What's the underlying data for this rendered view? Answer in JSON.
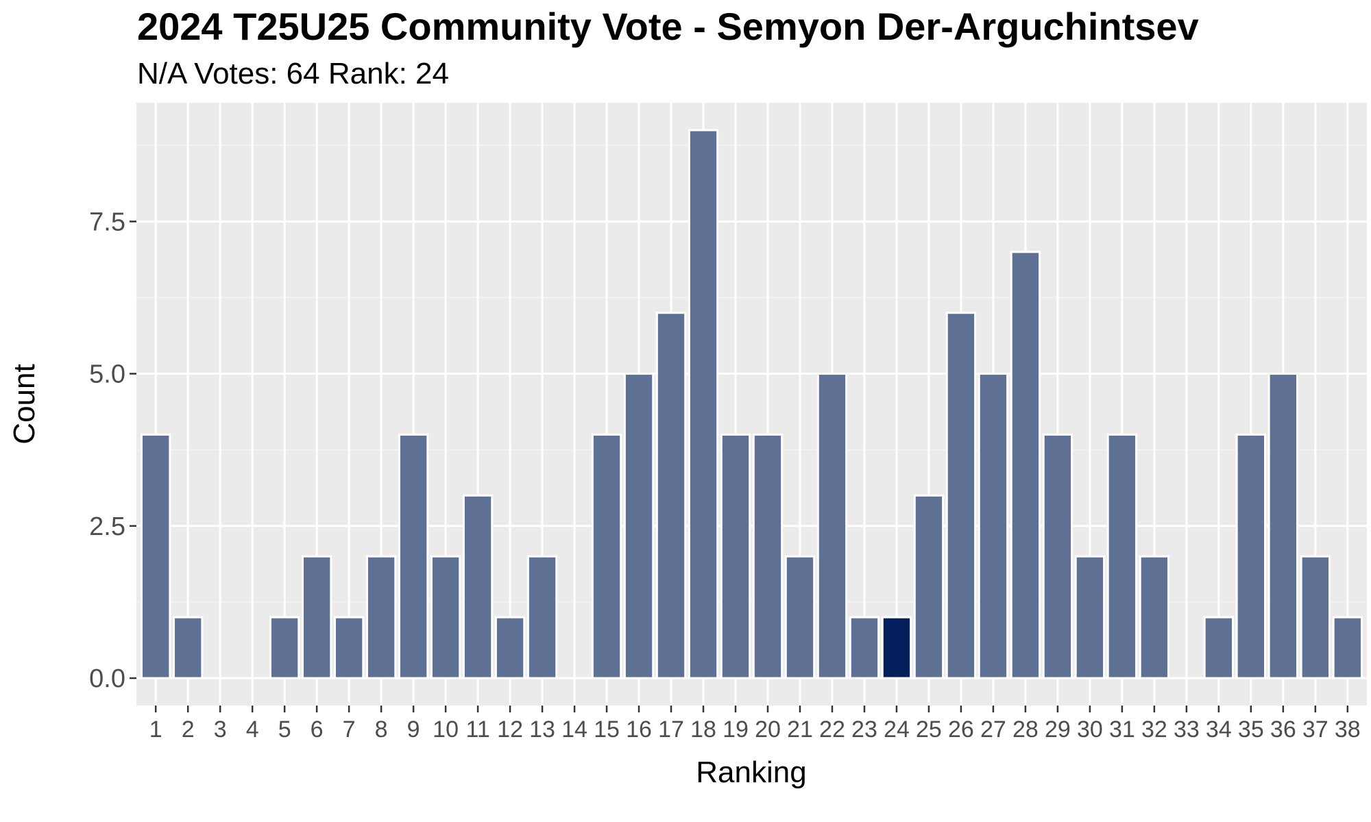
{
  "chart_data": {
    "type": "bar",
    "title": "2024 T25U25 Community Vote - Semyon Der-Arguchintsev",
    "subtitle": "N/A Votes: 64  Rank: 24",
    "xlabel": "Ranking",
    "ylabel": "Count",
    "categories": [
      "1",
      "2",
      "3",
      "4",
      "5",
      "6",
      "7",
      "8",
      "9",
      "10",
      "11",
      "12",
      "13",
      "14",
      "15",
      "16",
      "17",
      "18",
      "19",
      "20",
      "21",
      "22",
      "23",
      "24",
      "25",
      "26",
      "27",
      "28",
      "29",
      "30",
      "31",
      "32",
      "33",
      "34",
      "35",
      "36",
      "37",
      "38"
    ],
    "values": [
      4,
      1,
      0,
      0,
      1,
      2,
      1,
      2,
      4,
      2,
      3,
      1,
      2,
      0,
      4,
      5,
      6,
      9,
      4,
      4,
      2,
      5,
      1,
      1,
      3,
      6,
      5,
      7,
      4,
      2,
      4,
      2,
      0,
      1,
      4,
      5,
      2,
      1
    ],
    "highlight_category": "24",
    "ylim": [
      -0.45,
      9.45
    ],
    "yticks": [
      0,
      2.5,
      5,
      7.5
    ],
    "ytick_labels": [
      "0.0",
      "2.5",
      "5.0",
      "7.5"
    ],
    "grid": true,
    "legend": "none",
    "colors": {
      "bar": "#5e7094",
      "highlight": "#04205c",
      "panel": "#ebebeb",
      "grid_major": "#ffffff",
      "grid_minor": "#f4f4f4"
    }
  }
}
